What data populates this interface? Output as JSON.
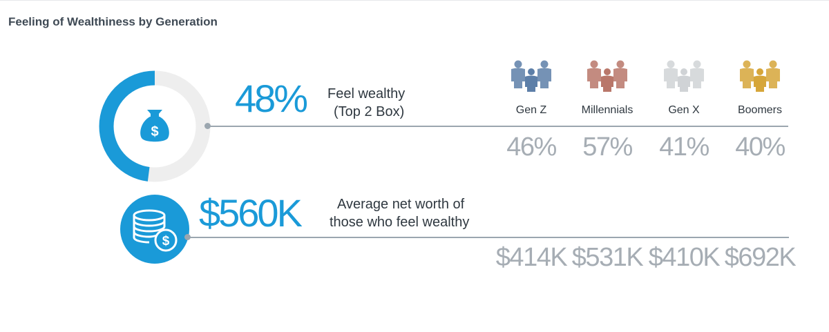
{
  "title": "Feeling of Wealthiness by Generation",
  "wealthy": {
    "value": "48%",
    "label_line1": "Feel wealthy",
    "label_line2": "(Top 2 Box)"
  },
  "networth": {
    "value": "$560K",
    "label_line1": "Average net worth of",
    "label_line2": "those who feel wealthy"
  },
  "generations": [
    {
      "name": "Gen Z",
      "pct": "46%",
      "worth": "$414K",
      "color": "#5d7fa8"
    },
    {
      "name": "Millennials",
      "pct": "57%",
      "worth": "$531K",
      "color": "#b9776a"
    },
    {
      "name": "Gen X",
      "pct": "41%",
      "worth": "$410K",
      "color": "#d0d3d6"
    },
    {
      "name": "Boomers",
      "pct": "40%",
      "worth": "$692K",
      "color": "#d6a63a"
    }
  ],
  "icons": {
    "donut": "money-bag-icon",
    "coins": "coin-stack-icon",
    "people": "people-group-icon"
  },
  "colors": {
    "accent": "#1a9ad8",
    "ring_track": "#eeeeee",
    "muted": "#a6adb4"
  },
  "chart_data": {
    "type": "table",
    "title": "Feeling of Wealthiness by Generation",
    "categories": [
      "Gen Z",
      "Millennials",
      "Gen X",
      "Boomers"
    ],
    "series": [
      {
        "name": "Feel wealthy (Top 2 Box)",
        "overall": 48,
        "values": [
          46,
          57,
          41,
          40
        ]
      },
      {
        "name": "Average net worth of those who feel wealthy",
        "overall": 560,
        "values": [
          414,
          531,
          410,
          692
        ]
      }
    ],
    "donut_fraction": 0.48
  }
}
